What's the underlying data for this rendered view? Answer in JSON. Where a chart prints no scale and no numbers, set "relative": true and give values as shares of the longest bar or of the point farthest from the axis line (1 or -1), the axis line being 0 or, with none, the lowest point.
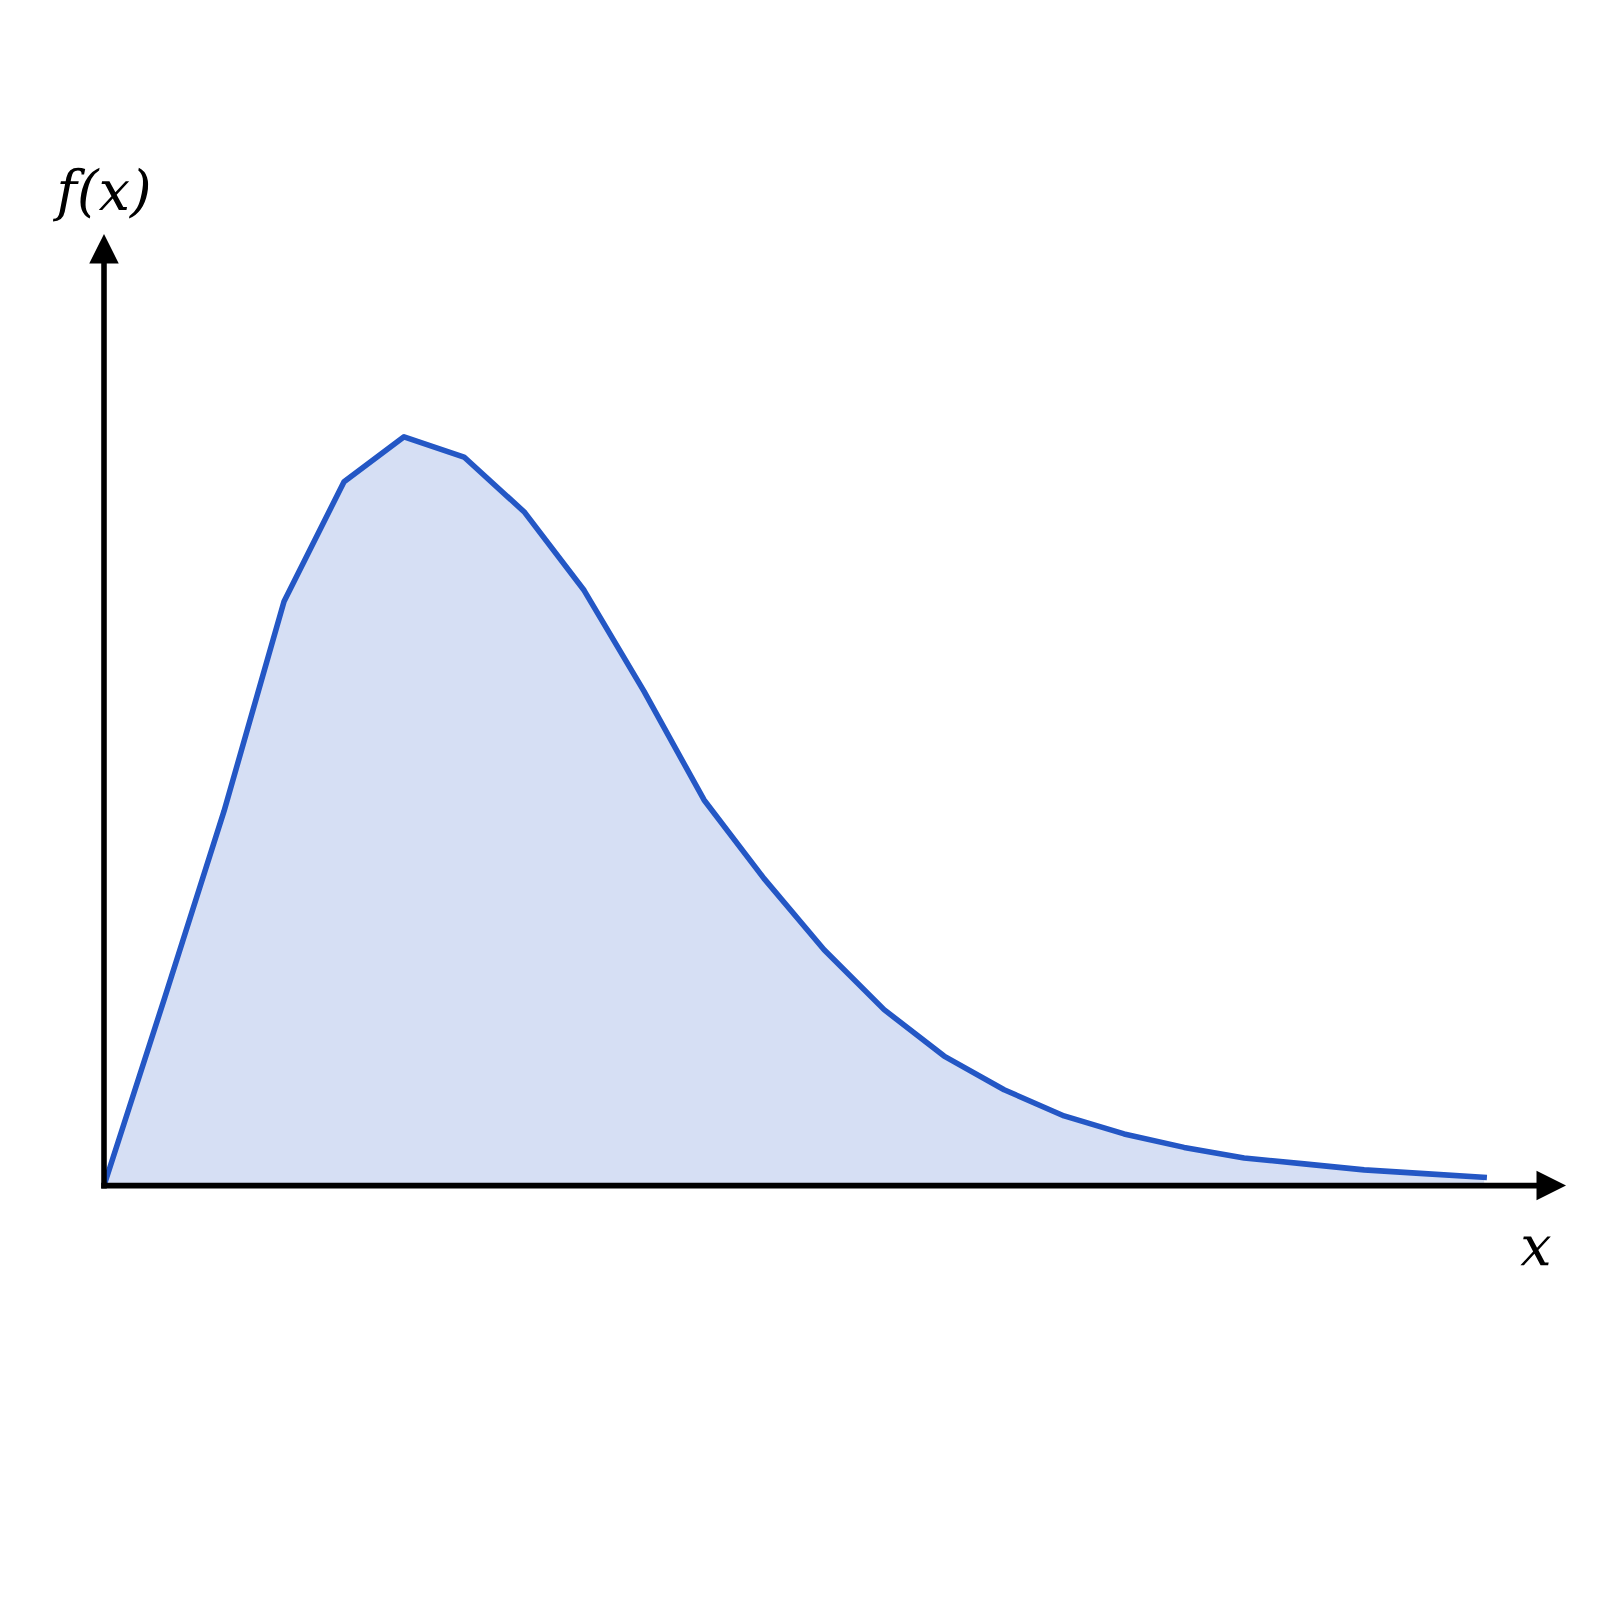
{
  "chart_data": {
    "type": "area",
    "relative": true,
    "xlabel": "x",
    "ylabel": "f(x)",
    "categories": [
      null,
      null,
      null,
      null,
      null,
      null,
      null,
      null,
      null,
      null,
      null,
      null,
      null,
      null,
      null,
      null,
      null,
      null,
      null,
      null,
      null,
      null,
      null,
      null
    ],
    "series": [
      {
        "color": "#2457c5",
        "values": [
          0,
          0.248,
          0.5,
          0.78,
          0.94,
          1.0,
          0.973,
          0.9,
          0.795,
          0.66,
          0.515,
          0.41,
          0.315,
          0.235,
          0.173,
          0.128,
          0.093,
          0.069,
          0.051,
          0.037,
          0.029,
          0.021,
          0.016,
          0.011
        ]
      }
    ],
    "legend": false
  }
}
